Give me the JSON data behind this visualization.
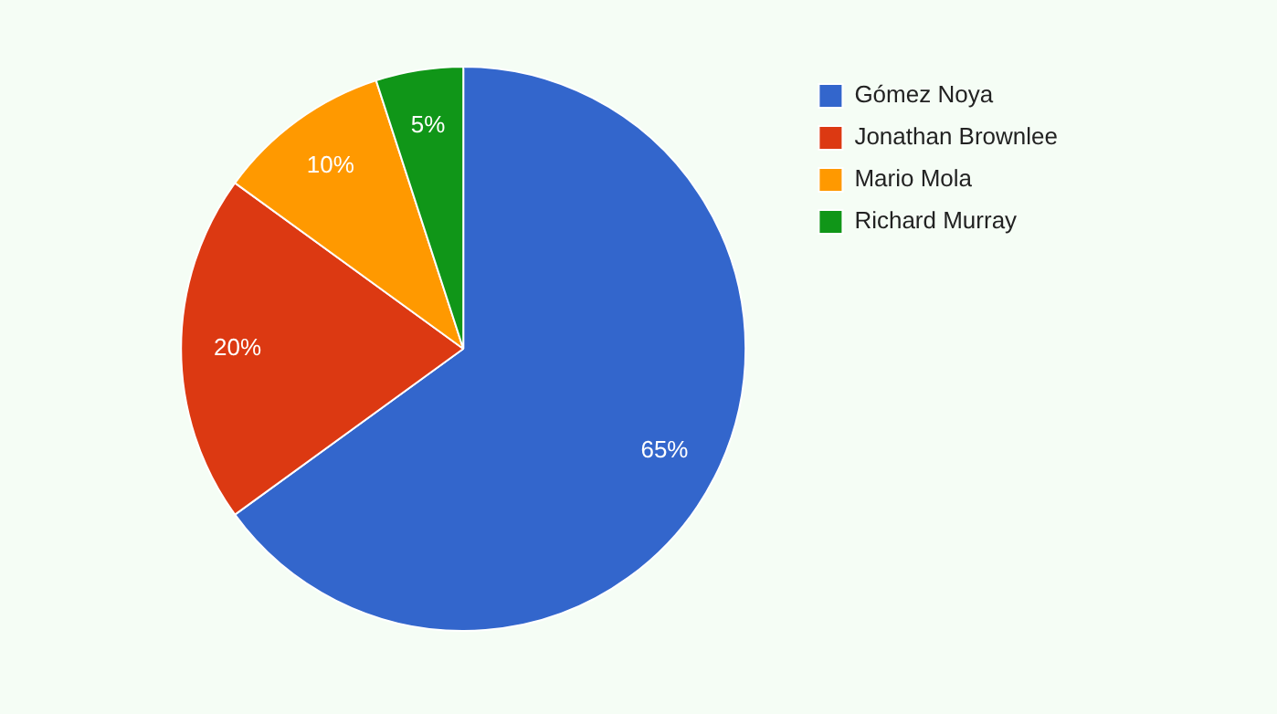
{
  "chart_data": {
    "type": "pie",
    "categories": [
      "Gómez Noya",
      "Jonathan Brownlee",
      "Mario Mola",
      "Richard Murray"
    ],
    "values": [
      65,
      20,
      10,
      5
    ],
    "colors": [
      "#3366cc",
      "#dc3912",
      "#ff9900",
      "#109618"
    ],
    "value_labels": [
      "65%",
      "20%",
      "10%",
      "5%"
    ],
    "legend": "top right"
  }
}
